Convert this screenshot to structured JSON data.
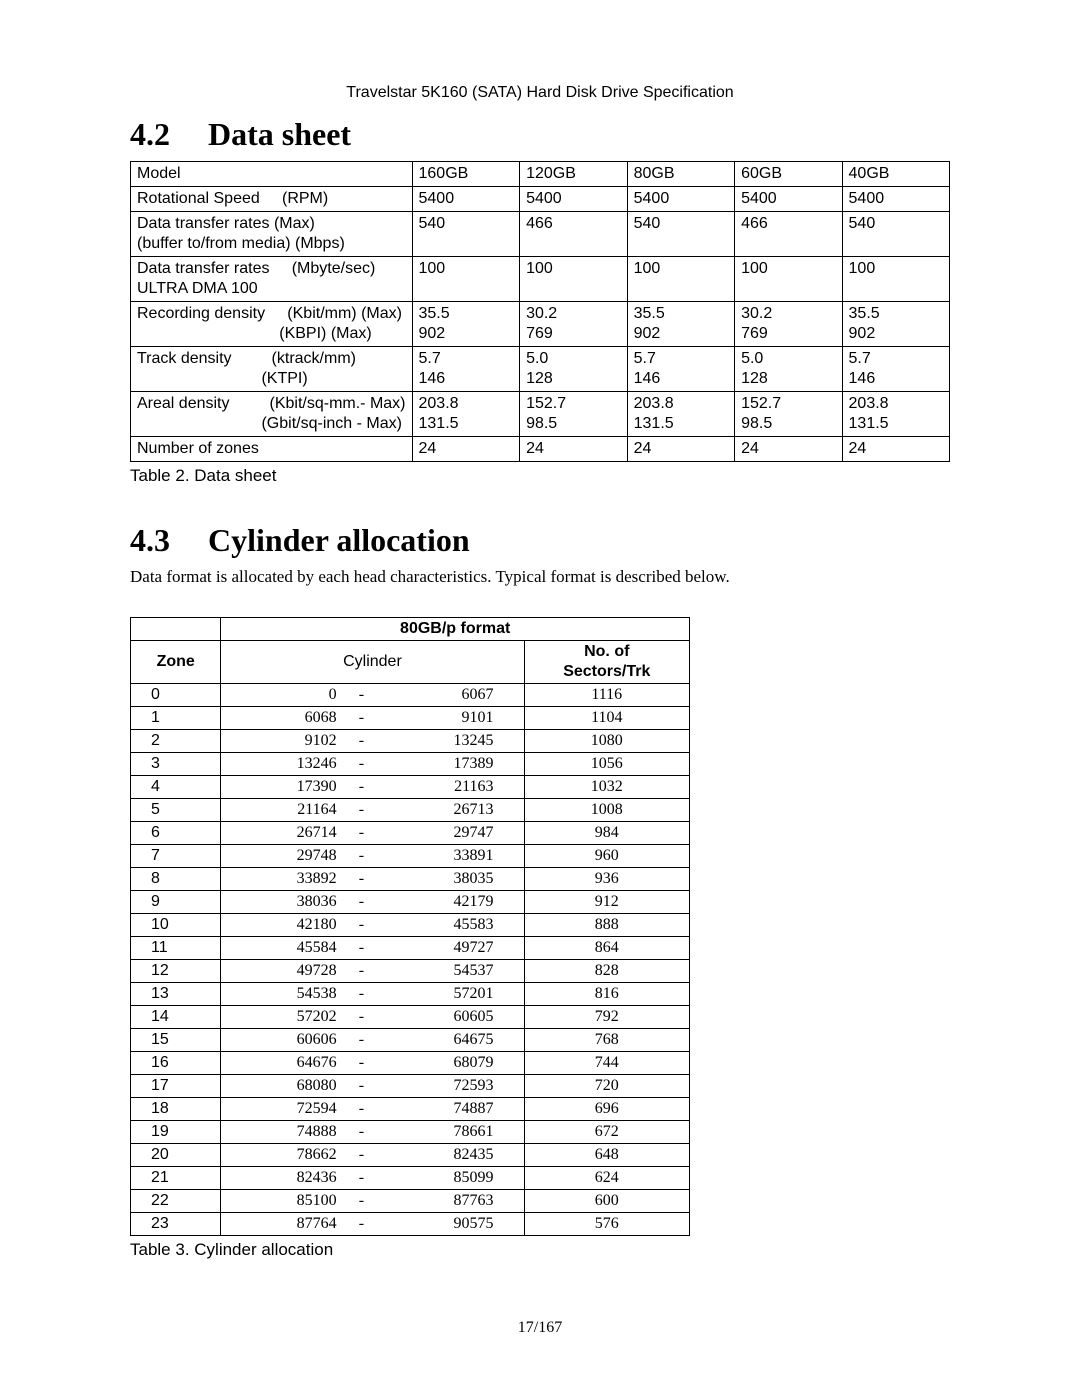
{
  "header": {
    "running_title": "Travelstar 5K160 (SATA) Hard Disk Drive Specification"
  },
  "section_datasheet": {
    "number": "4.2",
    "title": "Data sheet",
    "caption": "Table 2. Data sheet",
    "columns": [
      "160GB",
      "120GB",
      "80GB",
      "60GB",
      "40GB"
    ],
    "rows": [
      {
        "label": "Model",
        "values": [
          "160GB",
          "120GB",
          "80GB",
          "60GB",
          "40GB"
        ]
      },
      {
        "label": "Rotational Speed     (RPM)",
        "values": [
          "5400",
          "5400",
          "5400",
          "5400",
          "5400"
        ]
      },
      {
        "label": "Data transfer rates (Max)\n(buffer to/from media) (Mbps)",
        "values": [
          "540",
          "466",
          "540",
          "466",
          "540"
        ]
      },
      {
        "label": "Data transfer rates     (Mbyte/sec)\nULTRA DMA 100",
        "values": [
          "100",
          "100",
          "100",
          "100",
          "100"
        ]
      },
      {
        "label": "Recording density     (Kbit/mm) (Max)\n                                (KBPI) (Max)",
        "values": [
          "35.5\n902",
          "30.2\n769",
          "35.5\n902",
          "30.2\n769",
          "35.5\n902"
        ]
      },
      {
        "label": "Track density         (ktrack/mm)\n                            (KTPI)",
        "values": [
          "5.7\n146",
          "5.0\n128",
          "5.7\n146",
          "5.0\n128",
          "5.7\n146"
        ]
      },
      {
        "label": "Areal density         (Kbit/sq-mm.- Max)\n                            (Gbit/sq-inch - Max)",
        "values": [
          "203.8\n131.5",
          "152.7\n98.5",
          "203.8\n131.5",
          "152.7\n98.5",
          "203.8\n131.5"
        ]
      },
      {
        "label": "Number of zones",
        "values": [
          "24",
          "24",
          "24",
          "24",
          "24"
        ]
      }
    ]
  },
  "section_cylinder": {
    "number": "4.3",
    "title": "Cylinder allocation",
    "intro": "Data format is allocated by each head characteristics. Typical format is described below.",
    "caption": "Table 3. Cylinder allocation",
    "super_header": "80GB/p format",
    "col_zone": "Zone",
    "col_cyl": "Cylinder",
    "col_sectors": "No. of\nSectors/Trk",
    "rows": [
      {
        "zone": "0",
        "start": "0",
        "end": "6067",
        "sectors": "1116"
      },
      {
        "zone": "1",
        "start": "6068",
        "end": "9101",
        "sectors": "1104"
      },
      {
        "zone": "2",
        "start": "9102",
        "end": "13245",
        "sectors": "1080"
      },
      {
        "zone": "3",
        "start": "13246",
        "end": "17389",
        "sectors": "1056"
      },
      {
        "zone": "4",
        "start": "17390",
        "end": "21163",
        "sectors": "1032"
      },
      {
        "zone": "5",
        "start": "21164",
        "end": "26713",
        "sectors": "1008"
      },
      {
        "zone": "6",
        "start": "26714",
        "end": "29747",
        "sectors": "984"
      },
      {
        "zone": "7",
        "start": "29748",
        "end": "33891",
        "sectors": "960"
      },
      {
        "zone": "8",
        "start": "33892",
        "end": "38035",
        "sectors": "936"
      },
      {
        "zone": "9",
        "start": "38036",
        "end": "42179",
        "sectors": "912"
      },
      {
        "zone": "10",
        "start": "42180",
        "end": "45583",
        "sectors": "888"
      },
      {
        "zone": "11",
        "start": "45584",
        "end": "49727",
        "sectors": "864"
      },
      {
        "zone": "12",
        "start": "49728",
        "end": "54537",
        "sectors": "828"
      },
      {
        "zone": "13",
        "start": "54538",
        "end": "57201",
        "sectors": "816"
      },
      {
        "zone": "14",
        "start": "57202",
        "end": "60605",
        "sectors": "792"
      },
      {
        "zone": "15",
        "start": "60606",
        "end": "64675",
        "sectors": "768"
      },
      {
        "zone": "16",
        "start": "64676",
        "end": "68079",
        "sectors": "744"
      },
      {
        "zone": "17",
        "start": "68080",
        "end": "72593",
        "sectors": "720"
      },
      {
        "zone": "18",
        "start": "72594",
        "end": "74887",
        "sectors": "696"
      },
      {
        "zone": "19",
        "start": "74888",
        "end": "78661",
        "sectors": "672"
      },
      {
        "zone": "20",
        "start": "78662",
        "end": "82435",
        "sectors": "648"
      },
      {
        "zone": "21",
        "start": "82436",
        "end": "85099",
        "sectors": "624"
      },
      {
        "zone": "22",
        "start": "85100",
        "end": "87763",
        "sectors": "600"
      },
      {
        "zone": "23",
        "start": "87764",
        "end": "90575",
        "sectors": "576"
      }
    ]
  },
  "footer": {
    "page_number": "17/167"
  }
}
